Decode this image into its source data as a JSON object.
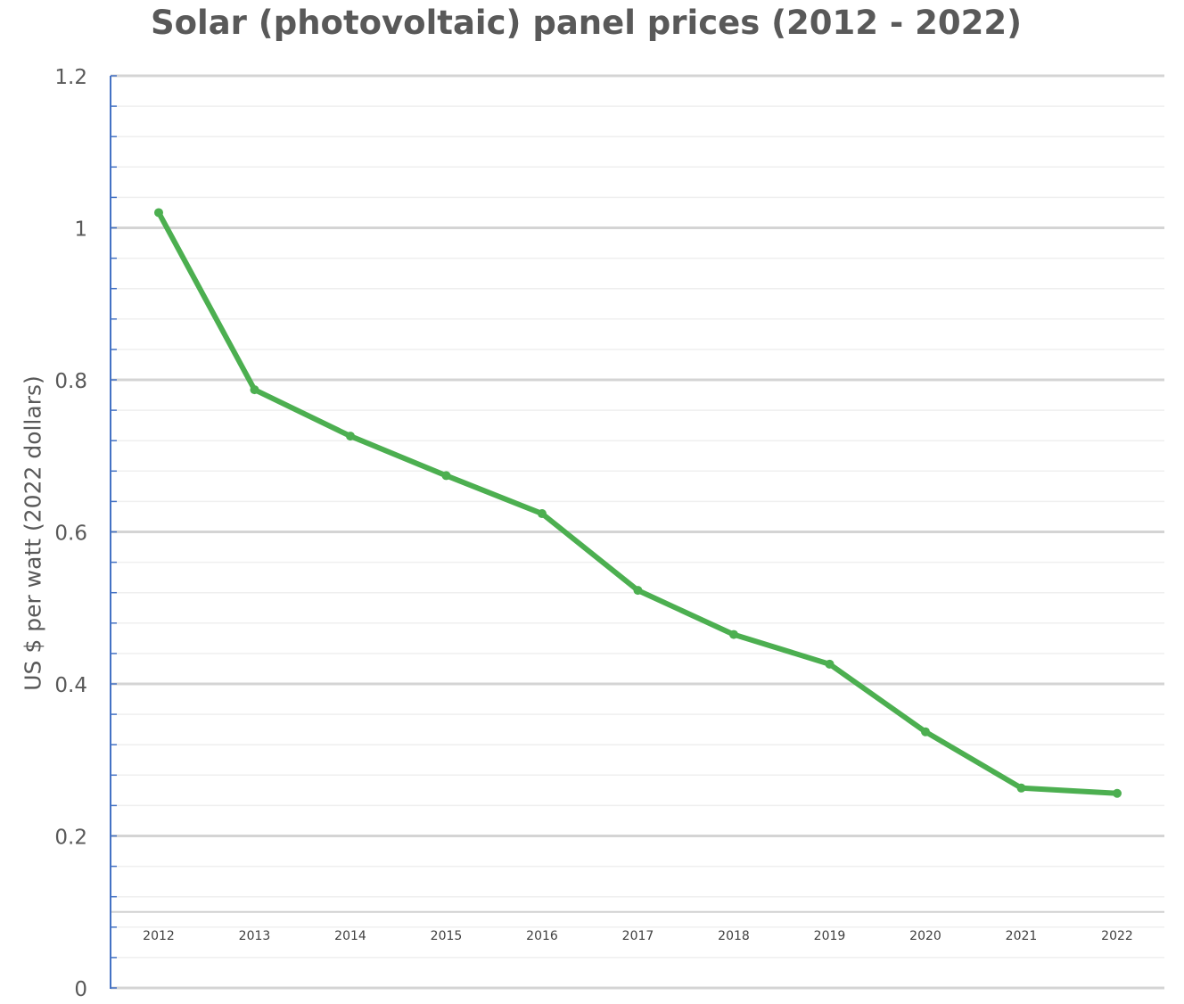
{
  "chart_data": {
    "type": "line",
    "title": "Solar (photovoltaic) panel prices (2012 - 2022)",
    "xlabel": "",
    "ylabel": "US $ per watt (2022 dollars)",
    "categories": [
      "2012",
      "2013",
      "2014",
      "2015",
      "2016",
      "2017",
      "2018",
      "2019",
      "2020",
      "2021",
      "2022"
    ],
    "values": [
      1.02,
      0.787,
      0.726,
      0.674,
      0.624,
      0.523,
      0.465,
      0.426,
      0.337,
      0.263,
      0.256
    ],
    "ylim": [
      0,
      1.2
    ],
    "yticks": [
      "0",
      "0.2",
      "0.4",
      "0.6",
      "0.8",
      "1",
      "1.2"
    ],
    "grid": true,
    "line_color": "#4CAF50",
    "axis_color": "#4472C4"
  }
}
